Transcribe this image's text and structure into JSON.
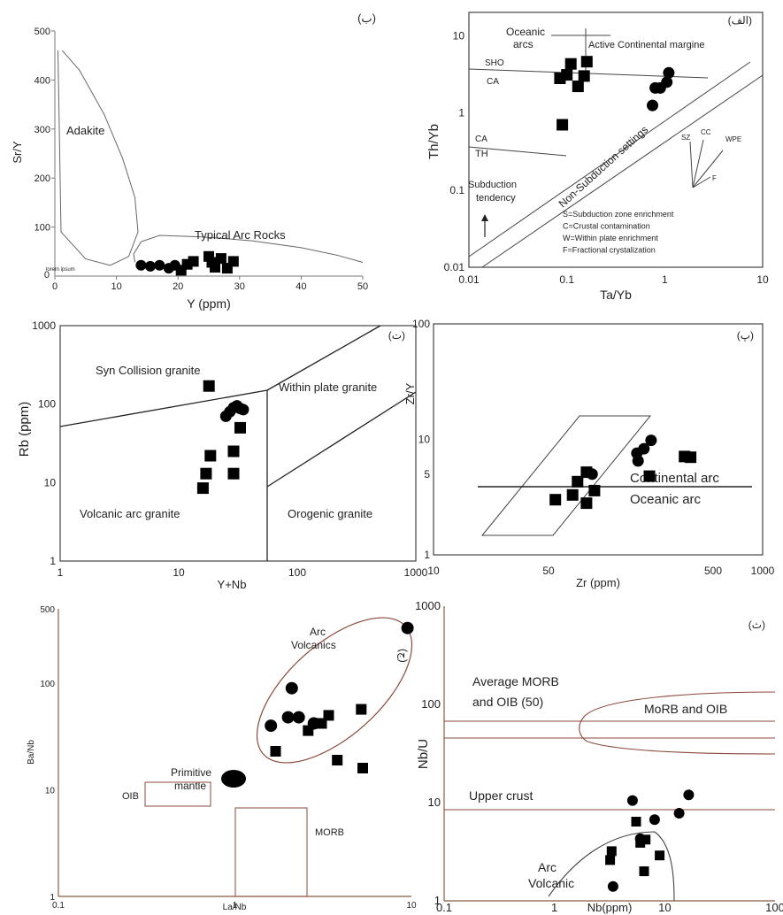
{
  "chart_data": [
    {
      "id": "b",
      "type": "scatter",
      "panel_label": "(ب)",
      "xlabel": "Y (ppm)",
      "ylabel": "Sr/Y",
      "xlim": [
        0,
        50
      ],
      "ylim": [
        0,
        500
      ],
      "x_ticks": [
        "0",
        "10",
        "20",
        "30",
        "40",
        "50"
      ],
      "y_ticks": [
        "100",
        "200",
        "300",
        "400",
        "500"
      ],
      "y_zero_label": "0",
      "field_labels": {
        "adakite": "Adakite",
        "arc": "Typical Arc Rocks",
        "small": "lorem ipsum"
      },
      "circles": [
        [
          14,
          22
        ],
        [
          15.5,
          20
        ],
        [
          17,
          22
        ],
        [
          18.5,
          16
        ],
        [
          19.5,
          22
        ]
      ],
      "squares": [
        [
          20.5,
          12
        ],
        [
          21.5,
          24
        ],
        [
          22.5,
          30
        ],
        [
          25,
          40
        ],
        [
          25.5,
          28
        ],
        [
          26,
          18
        ],
        [
          27,
          36
        ],
        [
          28,
          16
        ],
        [
          29,
          30
        ]
      ],
      "adakite_curve": [
        [
          1.2,
          460
        ],
        [
          4,
          420
        ],
        [
          8,
          330
        ],
        [
          11,
          240
        ],
        [
          13,
          160
        ],
        [
          13.5,
          90
        ],
        [
          12,
          40
        ],
        [
          9,
          22
        ],
        [
          5,
          35
        ],
        [
          1,
          90
        ],
        [
          0.5,
          460
        ]
      ],
      "arc_curve": [
        [
          13,
          28
        ],
        [
          12.8,
          45
        ],
        [
          14,
          70
        ],
        [
          17,
          83
        ],
        [
          24,
          80
        ],
        [
          32,
          72
        ],
        [
          40,
          58
        ],
        [
          46,
          42
        ],
        [
          50,
          28
        ]
      ]
    },
    {
      "id": "alef",
      "type": "scatter",
      "panel_label": "(الف)",
      "xlabel": "Ta/Yb",
      "ylabel": "Th/Yb",
      "scale": "log",
      "xlim": [
        0.01,
        10
      ],
      "ylim": [
        0.01,
        20
      ],
      "x_ticks": [
        "0.01",
        "0.1",
        "1",
        "10"
      ],
      "y_ticks": [
        "0.01",
        "0.1",
        "1",
        "10"
      ],
      "labels": {
        "oceanic": "Oceanic",
        "arcs": "arcs",
        "acm": "Active Continental margine",
        "sho": "SHO",
        "ca1": "CA",
        "ca2": "CA",
        "th": "TH",
        "nonsub": "Non-Subduction settings",
        "subtend1": "Subduction",
        "subtend2": "tendency",
        "sz": "SZ",
        "cc": "CC",
        "wpe": "WPE",
        "f": "F"
      },
      "legend_lines": [
        "S=Subduction zone enrichment",
        "C=Crustal contamination",
        "W=Within plate enrichment",
        "F=Fractional crystalization"
      ],
      "circles": [
        [
          0.8,
          2.1
        ],
        [
          0.9,
          2.1
        ],
        [
          1.05,
          2.5
        ],
        [
          1.1,
          3.3
        ],
        [
          0.75,
          1.25
        ]
      ],
      "squares": [
        [
          0.085,
          2.8
        ],
        [
          0.1,
          3.1
        ],
        [
          0.11,
          4.3
        ],
        [
          0.13,
          2.2
        ],
        [
          0.15,
          3.0
        ],
        [
          0.16,
          4.6
        ],
        [
          0.09,
          0.7
        ]
      ]
    },
    {
      "id": "t",
      "type": "scatter",
      "panel_label": "(ت)",
      "xlabel": "Y+Nb",
      "ylabel": "Rb (ppm)",
      "scale": "log",
      "xlim": [
        1,
        1000
      ],
      "ylim": [
        1,
        1000
      ],
      "x_ticks": [
        "1",
        "10",
        "100",
        "1000"
      ],
      "y_ticks": [
        "1",
        "10",
        "100",
        "1000"
      ],
      "field_labels": {
        "syn": "Syn Collision granite",
        "wpg": "Within plate granite",
        "vag": "Volcanic arc granite",
        "org": "Orogenic granite"
      },
      "circles": [
        [
          25,
          70
        ],
        [
          27,
          80
        ],
        [
          29,
          90
        ],
        [
          31,
          95
        ],
        [
          33,
          88
        ],
        [
          35,
          85
        ]
      ],
      "squares": [
        [
          18,
          170
        ],
        [
          16,
          8.5
        ],
        [
          17,
          13
        ],
        [
          18.5,
          22
        ],
        [
          29,
          25
        ],
        [
          29,
          13
        ],
        [
          33,
          50
        ]
      ]
    },
    {
      "id": "p",
      "type": "scatter",
      "panel_label": "(پ)",
      "xlabel": "Zr (ppm)",
      "ylabel": "Zr/Y",
      "scale": "log",
      "xlim": [
        10,
        1000
      ],
      "ylim": [
        1,
        100
      ],
      "x_ticks": [
        "10",
        "50",
        "500",
        "1000"
      ],
      "y_ticks": [
        "1",
        "5",
        "10",
        "100"
      ],
      "field_labels": {
        "cont": "Continental arc",
        "ocean": "Oceanic arc"
      },
      "circles": [
        [
          92,
          5.0
        ],
        [
          175,
          6.5
        ],
        [
          172,
          7.6
        ],
        [
          190,
          8.3
        ],
        [
          210,
          9.8
        ]
      ],
      "squares": [
        [
          55,
          3.0
        ],
        [
          70,
          3.3
        ],
        [
          75,
          4.3
        ],
        [
          85,
          5.2
        ],
        [
          85,
          2.8
        ],
        [
          95,
          3.6
        ],
        [
          205,
          4.8
        ],
        [
          335,
          7.1
        ],
        [
          365,
          7.0
        ]
      ]
    },
    {
      "id": "j",
      "type": "scatter",
      "panel_label": "(ج)",
      "xlabel": "La/Nb",
      "ylabel": "Ba/Nb",
      "scale": "log",
      "xlim": [
        0.1,
        10
      ],
      "ylim": [
        1,
        500
      ],
      "x_ticks": [
        "0.1",
        "1",
        "10"
      ],
      "y_ticks": [
        "1",
        "10",
        "100",
        "500"
      ],
      "field_labels": {
        "arc1": "Arc",
        "arc2": "Volcanics",
        "prim1": "Primitive",
        "prim2": "mantle",
        "oib": "OIB",
        "morb": "MORB"
      },
      "circles": [
        [
          1.6,
          40
        ],
        [
          2.0,
          48
        ],
        [
          2.3,
          48
        ],
        [
          2.8,
          42
        ],
        [
          2.1,
          90
        ],
        [
          9.5,
          330
        ]
      ],
      "squares": [
        [
          1.7,
          23
        ],
        [
          2.6,
          36
        ],
        [
          3.1,
          42
        ],
        [
          3.4,
          50
        ],
        [
          3.8,
          19
        ],
        [
          5.2,
          57
        ],
        [
          5.3,
          16
        ]
      ]
    },
    {
      "id": "th",
      "type": "scatter",
      "panel_label": "(ث)",
      "xlabel": "Nb(ppm)",
      "ylabel": "Nb/U",
      "scale": "log",
      "xlim": [
        0.1,
        100
      ],
      "ylim": [
        1,
        1000
      ],
      "x_ticks": [
        "0.1",
        "1",
        "10",
        "100"
      ],
      "y_ticks": [
        "1",
        "10",
        "100",
        "1000"
      ],
      "field_labels": {
        "avg1": "Average MORB",
        "avg2": "and OIB (50)",
        "morb": "MoRB and OIB",
        "upper": "Upper crust",
        "arc1": "Arc",
        "arc2": "Volcanic"
      },
      "circles": [
        [
          3.4,
          1.4
        ],
        [
          5.1,
          10.5
        ],
        [
          6.0,
          4.3
        ],
        [
          8.1,
          6.7
        ],
        [
          13.5,
          7.8
        ],
        [
          16.5,
          12
        ]
      ],
      "squares": [
        [
          3.2,
          2.6
        ],
        [
          3.3,
          3.2
        ],
        [
          5.5,
          6.4
        ],
        [
          6.0,
          3.9
        ],
        [
          6.5,
          2.0
        ],
        [
          6.7,
          4.2
        ],
        [
          9.0,
          2.9
        ]
      ]
    }
  ]
}
